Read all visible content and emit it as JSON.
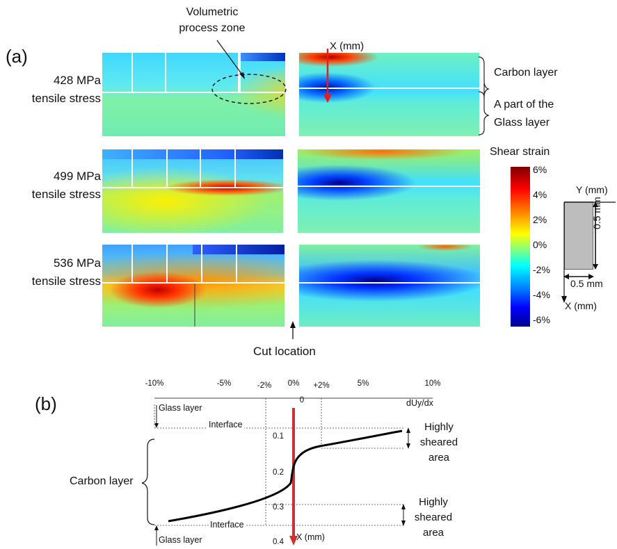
{
  "panel_a": {
    "label": "(a)",
    "annotations": {
      "process_zone": "Volumetric\nprocess zone",
      "x_axis": "X (mm)",
      "cut_location": "Cut location"
    },
    "rows": [
      {
        "stress": "428 MPa",
        "tensile": "tensile stress"
      },
      {
        "stress": "499 MPa",
        "tensile": "tensile stress"
      },
      {
        "stress": "536 MPa",
        "tensile": "tensile stress"
      }
    ],
    "layer_labels": {
      "carbon": "Carbon layer",
      "glass": "A part of the\nGlass layer"
    }
  },
  "colorbar": {
    "title": "Shear strain",
    "ticks": [
      "6%",
      "4%",
      "2%",
      "0%",
      "-2%",
      "-4%",
      "-6%"
    ],
    "colors": [
      "#7f0000",
      "#ff0000",
      "#ff8000",
      "#ffff00",
      "#80ff80",
      "#00ffff",
      "#0080ff",
      "#0000ff",
      "#00008f"
    ]
  },
  "specimen_sketch": {
    "y_label": "Y (mm)",
    "x_label": "X (mm)",
    "height_label": "0.5 mm",
    "width_label": "0.5 mm"
  },
  "panel_b": {
    "label": "(b)",
    "top_ticks": [
      "-10%",
      "-5%",
      "-2%",
      "0%",
      "+2%",
      "5%",
      "10%"
    ],
    "axis_label": "dUy/dx",
    "depth_ticks": [
      "0",
      "0.1",
      "0.2",
      "0.3",
      "0.4"
    ],
    "x_label": "X (mm)",
    "glass_top": "Glass layer",
    "glass_bottom": "Glass layer",
    "interface_top": "Interface",
    "interface_bottom": "Interface",
    "carbon": "Carbon layer",
    "sheared_top": "Highly\nsheared\narea",
    "sheared_bottom": "Highly\nsheared\narea"
  }
}
